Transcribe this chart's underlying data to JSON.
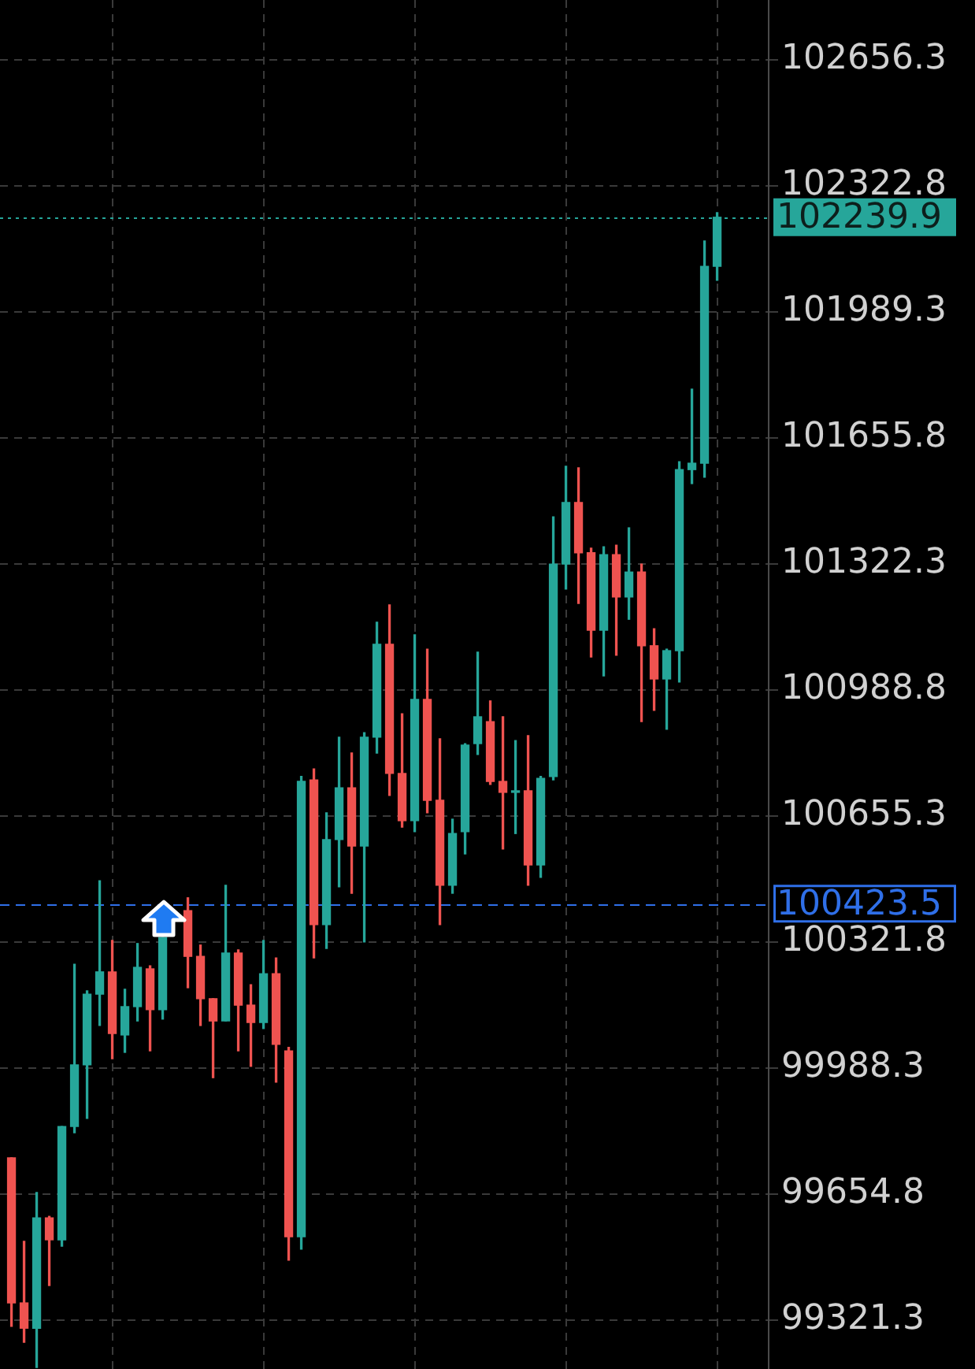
{
  "chart_data": {
    "type": "candlestick",
    "categories": [
      null,
      null,
      null,
      null,
      null,
      null,
      null,
      null,
      null,
      null,
      null,
      null,
      null,
      null,
      null,
      null,
      null,
      null,
      null,
      null,
      null,
      null,
      null,
      null,
      null,
      null,
      null,
      null,
      null,
      null,
      null,
      null,
      null,
      null,
      null,
      null,
      null,
      null,
      null,
      null,
      null,
      null,
      null,
      null,
      null,
      null,
      null,
      null,
      null,
      null,
      null,
      null,
      null,
      null,
      null,
      null,
      null
    ],
    "ohlc": [
      [
        99751,
        99751,
        99305,
        99367
      ],
      [
        99367,
        99530,
        99263,
        99300
      ],
      [
        99300,
        99659,
        99196,
        99592
      ],
      [
        99592,
        99596,
        99413,
        99534
      ],
      [
        99534,
        99834,
        99517,
        99834
      ],
      [
        99834,
        100263,
        99817,
        99997
      ],
      [
        99997,
        100193,
        99855,
        100184
      ],
      [
        100184,
        100484,
        100101,
        100243
      ],
      [
        100243,
        100326,
        100013,
        100080
      ],
      [
        100076,
        100197,
        100030,
        100151
      ],
      [
        100151,
        100318,
        100113,
        100255
      ],
      [
        100251,
        100259,
        100034,
        100143
      ],
      [
        100143,
        100334,
        100118,
        100334
      ],
      null,
      [
        100405,
        100439,
        100201,
        100284
      ],
      [
        100284,
        100314,
        100101,
        100172
      ],
      [
        100172,
        100172,
        99963,
        100113
      ],
      [
        100113,
        100472,
        100113,
        100293
      ],
      [
        100293,
        100301,
        100034,
        100155
      ],
      [
        100155,
        100209,
        99993,
        100109
      ],
      [
        100109,
        100326,
        100093,
        100238
      ],
      [
        100238,
        100280,
        99951,
        100051
      ],
      [
        100034,
        100043,
        99480,
        99542
      ],
      [
        99542,
        100760,
        99509,
        100747
      ],
      [
        100751,
        100780,
        100280,
        100368
      ],
      [
        100368,
        100664,
        100305,
        100593
      ],
      [
        100593,
        100864,
        100468,
        100730
      ],
      [
        100730,
        100822,
        100451,
        100576
      ],
      [
        100576,
        100876,
        100322,
        100864
      ],
      [
        100864,
        101168,
        100822,
        101110
      ],
      [
        101110,
        101214,
        100710,
        100768
      ],
      [
        100768,
        100926,
        100626,
        100643
      ],
      [
        100643,
        101135,
        100614,
        100964
      ],
      [
        100964,
        101097,
        100664,
        100697
      ],
      [
        100697,
        100860,
        100368,
        100472
      ],
      [
        100472,
        100647,
        100451,
        100609
      ],
      [
        100614,
        100847,
        100555,
        100843
      ],
      [
        100847,
        101089,
        100818,
        100918
      ],
      [
        100905,
        100960,
        100739,
        100747
      ],
      [
        100747,
        100918,
        100568,
        100718
      ],
      [
        100718,
        100855,
        100609,
        100722
      ],
      [
        100722,
        100868,
        100472,
        100526
      ],
      [
        100526,
        100760,
        100493,
        100755
      ],
      [
        100760,
        101447,
        100751,
        101322
      ],
      [
        101322,
        101581,
        101256,
        101485
      ],
      [
        101485,
        101577,
        101218,
        101352
      ],
      [
        101352,
        101364,
        101076,
        101147
      ],
      [
        101147,
        101368,
        101026,
        101347
      ],
      [
        101347,
        101372,
        101081,
        101235
      ],
      [
        101235,
        101418,
        101176,
        101301
      ],
      [
        101301,
        101322,
        100905,
        101106
      ],
      [
        101106,
        101151,
        100935,
        101018
      ],
      [
        101018,
        101097,
        100885,
        101093
      ],
      [
        101093,
        101593,
        101010,
        101572
      ],
      [
        101572,
        101785,
        101535,
        101589
      ],
      [
        101589,
        102177,
        101552,
        102110
      ],
      [
        102110,
        102252,
        102073,
        102239.9
      ]
    ],
    "colors": [
      "#ef5350",
      "#ef5350",
      "#26a69a",
      "#ef5350",
      "#26a69a",
      "#26a69a",
      "#26a69a",
      "#26a69a",
      "#ef5350",
      "#26a69a",
      "#26a69a",
      "#ef5350",
      "#26a69a",
      "#26a69a",
      "#ef5350",
      "#ef5350",
      "#ef5350",
      "#26a69a",
      "#ef5350",
      "#ef5350",
      "#26a69a",
      "#ef5350",
      "#ef5350",
      "#26a69a",
      "#ef5350",
      "#26a69a",
      "#26a69a",
      "#ef5350",
      "#26a69a",
      "#26a69a",
      "#ef5350",
      "#ef5350",
      "#26a69a",
      "#ef5350",
      "#ef5350",
      "#26a69a",
      "#26a69a",
      "#26a69a",
      "#ef5350",
      "#ef5350",
      "#26a69a",
      "#ef5350",
      "#26a69a",
      "#26a69a",
      "#26a69a",
      "#ef5350",
      "#ef5350",
      "#26a69a",
      "#ef5350",
      "#26a69a",
      "#ef5350",
      "#ef5350",
      "#26a69a",
      "#26a69a",
      "#26a69a",
      "#26a69a",
      "#26a69a"
    ],
    "ylim": [
      99192.1,
      102814.7
    ],
    "yticks": [
      99321.3,
      99654.8,
      99988.3,
      100321.8,
      100655.3,
      100988.8,
      101322.3,
      101655.8,
      101989.3,
      102322.8,
      102656.3
    ],
    "ref_lines": [
      {
        "axis": "y",
        "value": 102239.9,
        "label": "102239.9",
        "color": "#26a69a",
        "line_style": "dotted"
      },
      {
        "axis": "y",
        "value": 100423.5,
        "label": "100423.5",
        "color": "#2f6fe8",
        "line_style": "dashed"
      }
    ],
    "grid": true,
    "tick_labels": "y"
  }
}
